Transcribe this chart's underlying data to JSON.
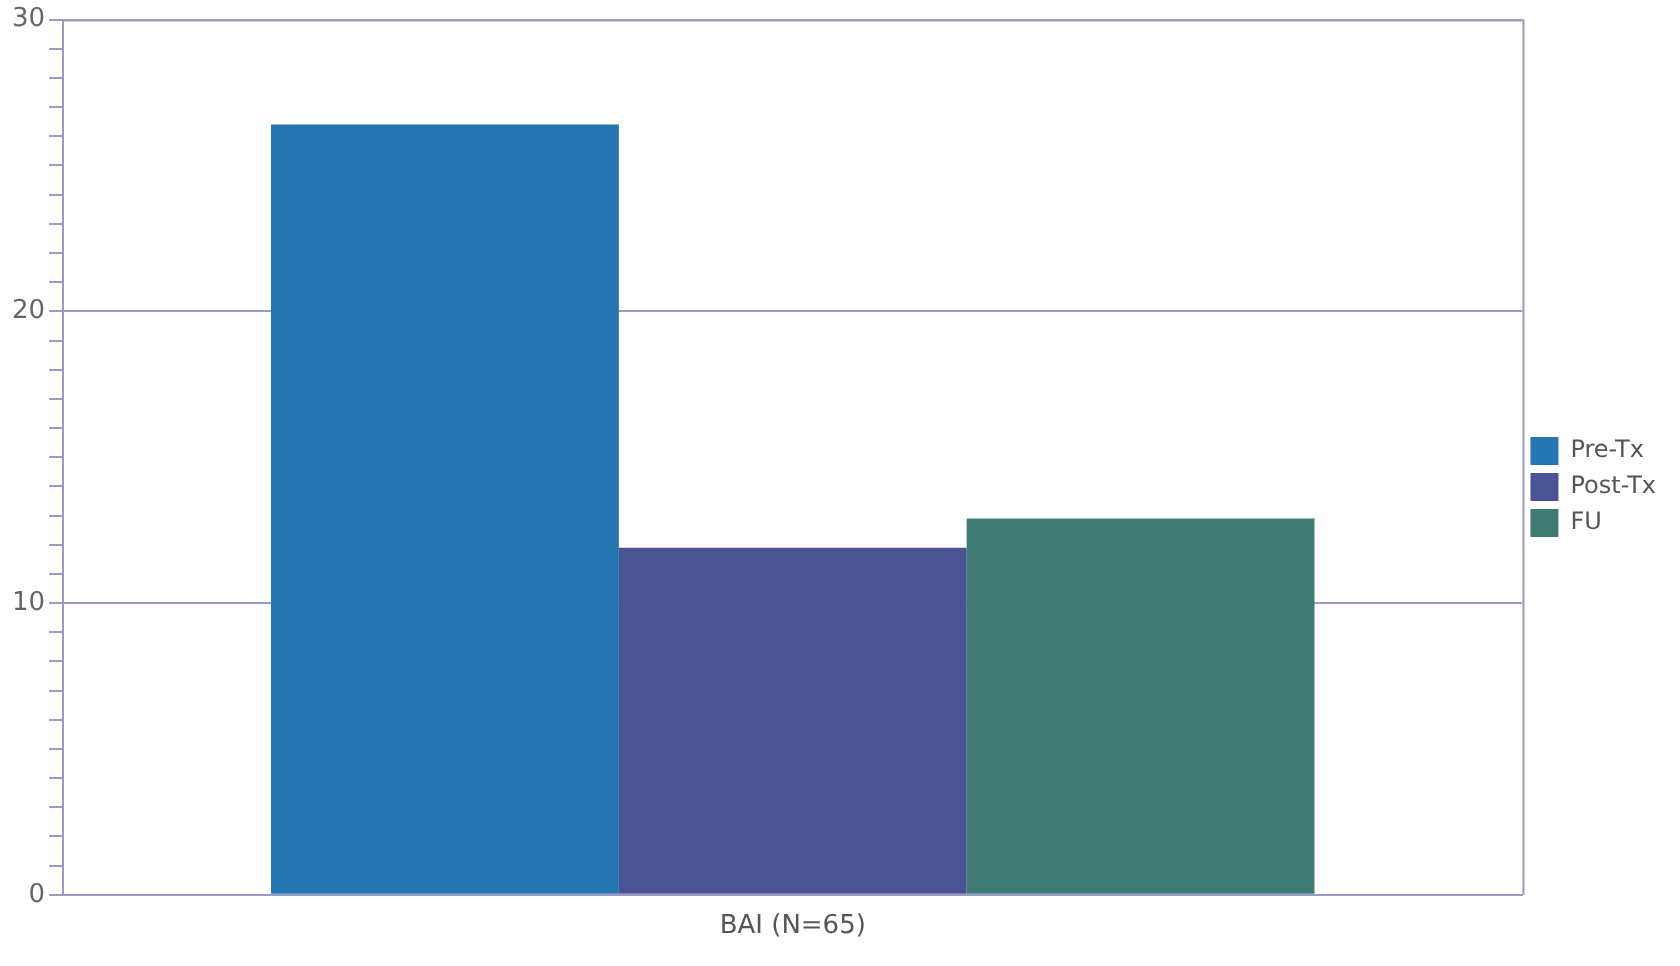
{
  "chart_data": {
    "type": "bar",
    "categories": [
      "BAI (N=65)"
    ],
    "series": [
      {
        "name": "Pre-Tx",
        "color": "#2475b0",
        "values": [
          26.4
        ]
      },
      {
        "name": "Post-Tx",
        "color": "#4b5394",
        "values": [
          11.9
        ]
      },
      {
        "name": "FU",
        "color": "#3e7b73",
        "values": [
          12.9
        ]
      }
    ],
    "ylim": [
      0,
      30
    ],
    "yticks": [
      0,
      {
        "value": 1,
        "label": null
      },
      {
        "value": 2,
        "label": null
      },
      {
        "value": 3,
        "label": null
      },
      {
        "value": 4,
        "label": null
      },
      {
        "value": 5,
        "label": null
      },
      {
        "value": 6,
        "label": null
      },
      {
        "value": 7,
        "label": null
      },
      {
        "value": 8,
        "label": null
      },
      {
        "value": 9,
        "label": null
      },
      10,
      {
        "value": 11,
        "label": null
      },
      {
        "value": 12,
        "label": null
      },
      {
        "value": 13,
        "label": null
      },
      {
        "value": 14,
        "label": null
      },
      {
        "value": 15,
        "label": null
      },
      {
        "value": 16,
        "label": null
      },
      {
        "value": 17,
        "label": null
      },
      {
        "value": 18,
        "label": null
      },
      {
        "value": 19,
        "label": null
      },
      20,
      {
        "value": 21,
        "label": null
      },
      {
        "value": 22,
        "label": null
      },
      {
        "value": 23,
        "label": null
      },
      {
        "value": 24,
        "label": null
      },
      {
        "value": 25,
        "label": null
      },
      {
        "value": 26,
        "label": null
      },
      {
        "value": 27,
        "label": null
      },
      {
        "value": 28,
        "label": null
      },
      {
        "value": 29,
        "label": null
      },
      30
    ],
    "grid": "y",
    "legend": "right"
  }
}
